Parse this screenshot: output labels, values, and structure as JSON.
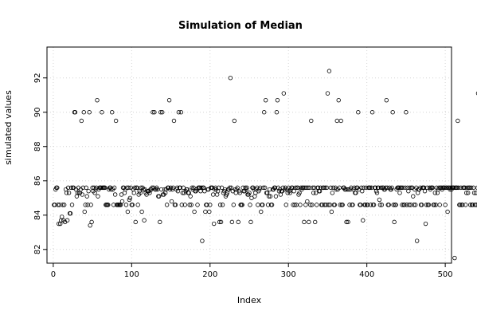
{
  "chart_data": {
    "type": "scatter",
    "title": "Simulation of Median",
    "xlabel": "Index",
    "ylabel": "simulated values",
    "xlim": [
      -8,
      508
    ],
    "ylim": [
      81.2,
      93.8
    ],
    "x_ticks": [
      0,
      100,
      200,
      300,
      400,
      500
    ],
    "y_ticks": [
      82,
      84,
      86,
      88,
      90,
      92
    ],
    "grid": "dotted",
    "legend": "none",
    "point_style": "open-circle",
    "x": "index 1..500",
    "y_encoding": "each character c maps to a value: 83.1 + (charCode(c) - 65) * 0.1; special: '@' = 82.5, '[' = 81.5, ']' = 92.4, '^' = 93.4, '_' = 92.0, '`' = 91.1, 'a' = 90.7, 'b' = 90.0, 'c' = 89.5, 'd' = 84.2, 'e' = 83.1",
    "y": "PPYZZPEPEGIPGPFYWGZWKKZPZZbbYUWZWWYcVZbdPZUPXbDPFZXZWYZaUYZZZbZZZZPPPPYZZYbYPZVcPPPPPPVRZZWYPZdZSTZPPYWZFZZPVXWZdZYGYWVXXXWYYZbZbYYZYUUFbYbVVYWYPZZaYZRYZcPPYZXbZZbPWZWPXYYWWPUPZYZdXXYPZZZXZ@ZZXdPPYYdPZZZVEYZYVXZFPFZPWXYUVWYYZ_ZFXPcYWYZFXWPPPZXXZYZVVWPFTZZYUWYZPXYZdPPZbZaWWPUYUPPYYZZUbaZXYVXXZ`YZPYWZXWYZZPXPZPZZVWPZYZZFZPZRZFZPcPZWZFWPZZXXZPPZZPZPZ`P]PZdWZPPZYcYaZPcPPZZYYFYFYPYZPPYZWWZZbYPPZXGZPPZPPZZZPZbPPZZXWZZSPZPZZYYZaZPPZYYZbPFPPYZZZWZZPZPPZbPZXPZPZZUPYPZ@WYYZPPZZZXEPZPPZYZZZPPWPZWYZPZZYZZZPZZdZZYZYZZZ[ZZZcZPPZPPZZZPWZWZZPZPPZWPWPZ`ZYZPZPZPZZPZPYZYPPZZZZPPZPZXXZPPXYYZdZZZXXXPZbYZXZZPPWYZZPPZYPcYZbPZP`ZaZPPPPXcZW@@PXYPWZXPZZYXPZ"
  }
}
